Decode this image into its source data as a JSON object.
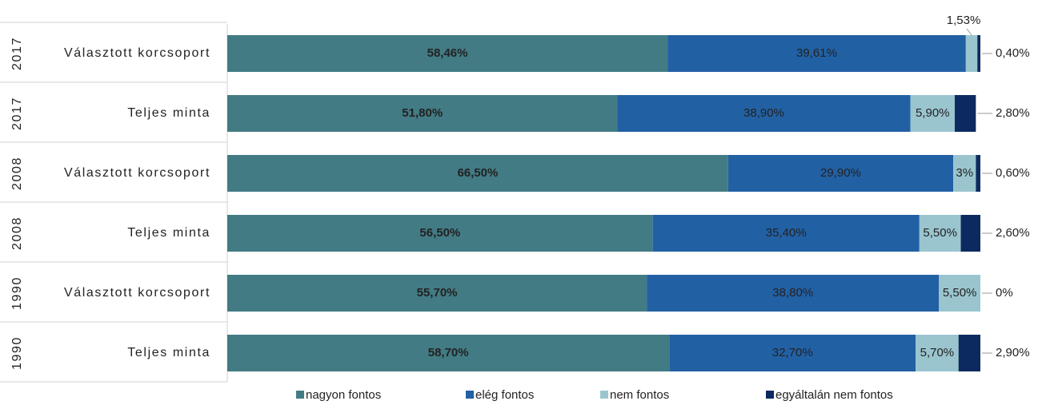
{
  "chart_data": {
    "type": "stacked_bar_horizontal",
    "categories": [
      "Választott korcsoport",
      "Teljes minta",
      "Választott korcsoport",
      "Teljes minta",
      "Választott korcsoport",
      "Teljes minta"
    ],
    "category_groups": [
      "2017",
      "2017",
      "2008",
      "2008",
      "1990",
      "1990"
    ],
    "xlim": [
      0,
      100
    ],
    "series": [
      {
        "name": "nagyon fontos",
        "color": "#427b84",
        "values": [
          58.46,
          51.8,
          66.5,
          56.5,
          55.7,
          58.7
        ],
        "value_labels": [
          "58,46%",
          "51,80%",
          "66,50%",
          "56,50%",
          "55,70%",
          "58,70%"
        ]
      },
      {
        "name": "elég fontos",
        "color": "#2260a4",
        "values": [
          39.61,
          38.9,
          29.9,
          35.4,
          38.8,
          32.7
        ],
        "value_labels": [
          "39,61%",
          "38,90%",
          "29,90%",
          "35,40%",
          "38,80%",
          "32,70%"
        ]
      },
      {
        "name": "nem fontos",
        "color": "#9ac5cf",
        "values": [
          1.53,
          5.9,
          3,
          5.5,
          5.5,
          5.7
        ],
        "value_labels": [
          "1,53%",
          "5,90%",
          "3%",
          "5,50%",
          "5,50%",
          "5,70%"
        ]
      },
      {
        "name": "egyáltalán nem fontos",
        "color": "#0d2a60",
        "values": [
          0.4,
          2.8,
          0.6,
          2.6,
          0,
          2.9
        ],
        "value_labels": [
          "0,40%",
          "2,80%",
          "0,60%",
          "2,60%",
          "0%",
          "2,90%"
        ]
      }
    ],
    "legend": "bottom"
  }
}
